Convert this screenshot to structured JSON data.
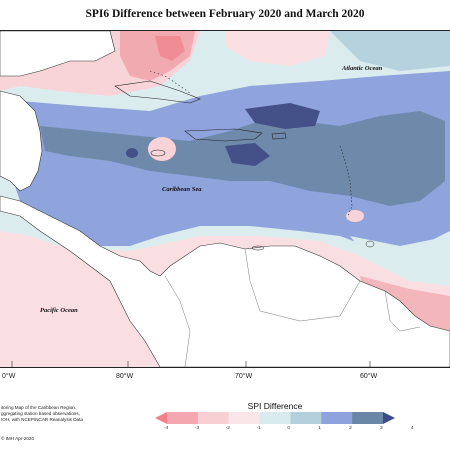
{
  "title": "SPI6 Difference between February 2020 and March 2020",
  "map_labels": {
    "atlantic": "Atlantic Ocean",
    "caribbean": "Caribbean Sea",
    "pacific": "Pacific Ocean"
  },
  "longitudes": [
    "80°W",
    "70°W",
    "60°W",
    "0°W"
  ],
  "credit_lines": [
    "itoring Map of the Caribbean Region.",
    "ggregating station based observations,",
    "IOH, with NCEP/NCAR Reanalysis Data"
  ],
  "copyright": "© IMH Apr-2020",
  "legend": {
    "title": "SPI Difference",
    "ticks": [
      "-4",
      "-3",
      "-2",
      "-1",
      "0",
      "1",
      "2",
      "3",
      "4"
    ],
    "colors": [
      "#f0818b",
      "#f4a7ae",
      "#f8cfd3",
      "#fae6e8",
      "#d8ebee",
      "#b3d0dc",
      "#8ea2dc",
      "#6b87a8",
      "#3f4b86"
    ]
  }
}
